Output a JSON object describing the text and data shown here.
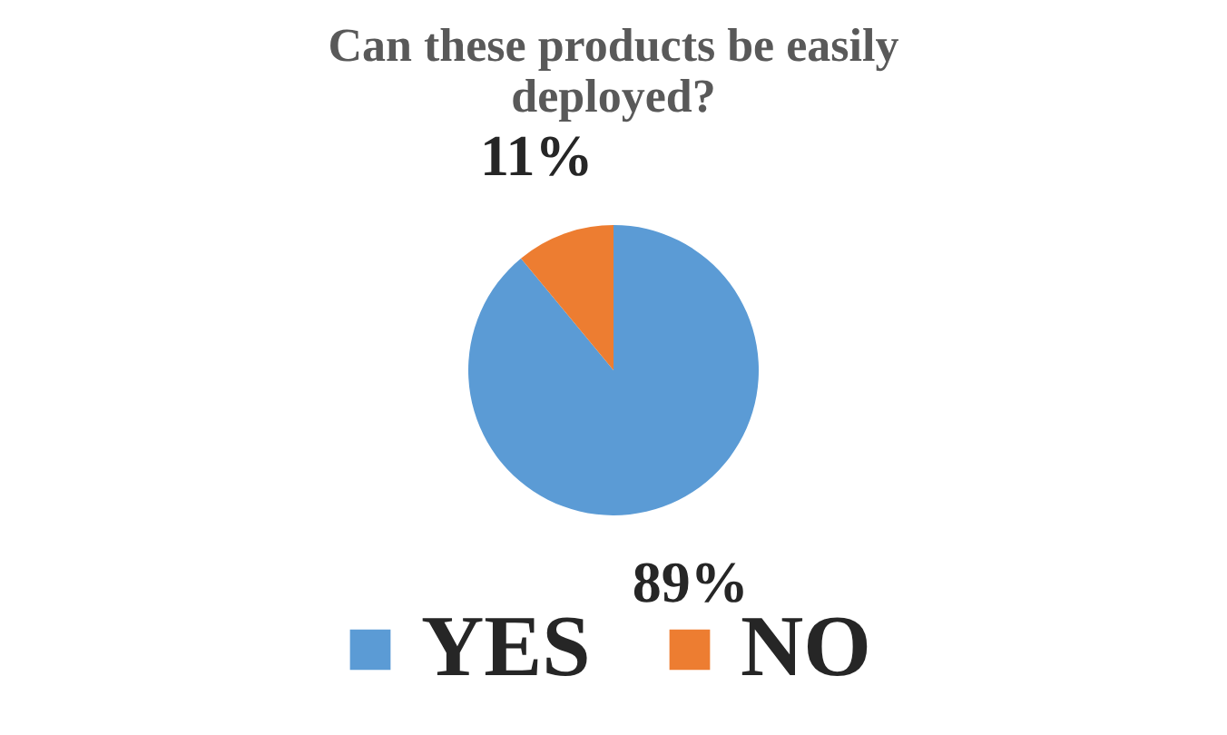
{
  "chart_data": {
    "type": "pie",
    "title": "Can these products be easily deployed?",
    "categories": [
      "YES",
      "NO"
    ],
    "values": [
      89,
      11
    ],
    "colors": [
      "#5b9bd5",
      "#ed7d31"
    ],
    "value_labels": [
      "89%",
      "11%"
    ],
    "legend": "bottom"
  }
}
